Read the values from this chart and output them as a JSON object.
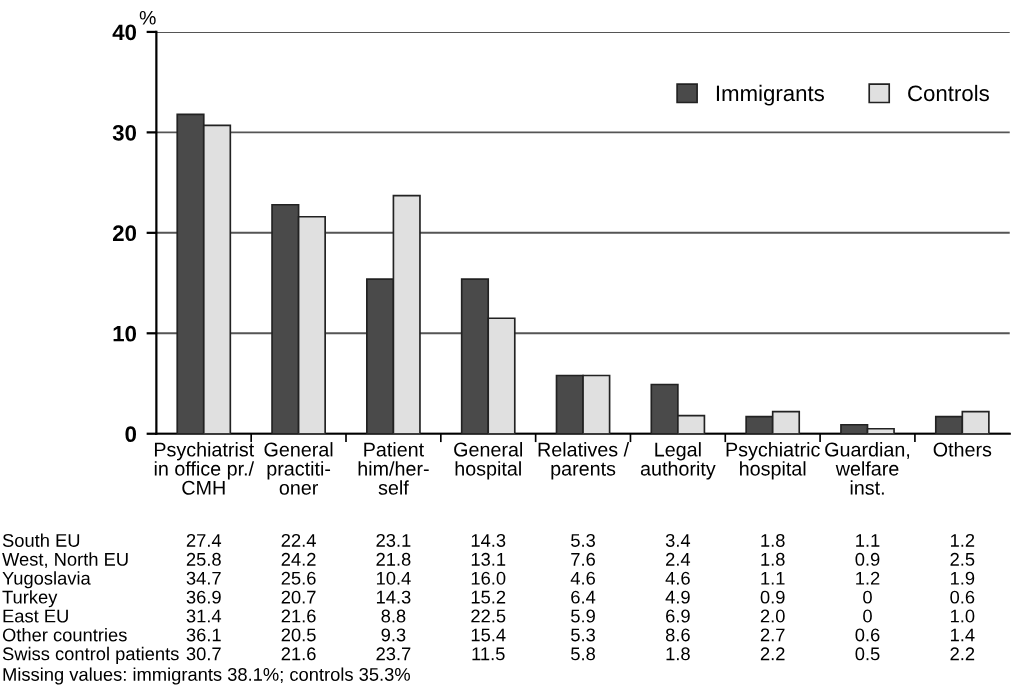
{
  "chart_data": {
    "type": "bar",
    "ylabel": "%",
    "categories": [
      "Psychiatrist\nin office pr./\nCMH",
      "General\npractiti-\noner",
      "Patient\nhim/her-\nself",
      "General\nhospital",
      "Relatives /\nparents",
      "Legal\nauthority",
      "Psychiatric\nhospital",
      "Guardian,\nwelfare\ninst.",
      "Others"
    ],
    "series": [
      {
        "name": "Immigrants",
        "color": "#4a4a4a",
        "values": [
          31.8,
          22.8,
          15.4,
          15.4,
          5.8,
          4.9,
          1.7,
          0.9,
          1.7
        ]
      },
      {
        "name": "Controls",
        "color": "#e0e0e0",
        "values": [
          30.7,
          21.6,
          23.7,
          11.5,
          5.8,
          1.8,
          2.2,
          0.5,
          2.2
        ]
      }
    ],
    "ylim": [
      0,
      40
    ],
    "yticks": [
      0,
      10,
      20,
      30,
      40
    ],
    "grid": "y",
    "legend": "top right",
    "annotations": [
      "South EU",
      "27.4",
      "22.4",
      "23.1",
      "14.3",
      "5.3",
      "3.4",
      "1.8",
      "1.1",
      "1.2",
      "West, North EU",
      "25.8",
      "24.2",
      "21.8",
      "13.1",
      "7.6",
      "2.4",
      "1.8",
      "0.9",
      "2.5",
      "Yugoslavia",
      "34.7",
      "25.6",
      "10.4",
      "16.0",
      "4.6",
      "4.6",
      "1.1",
      "1.2",
      "1.9",
      "Turkey",
      "36.9",
      "20.7",
      "14.3",
      "15.2",
      "6.4",
      "4.9",
      "0.9",
      "0",
      "0.6",
      "East EU",
      "31.4",
      "21.6",
      "8.8",
      "22.5",
      "5.9",
      "6.9",
      "2.0",
      "0",
      "1.0",
      "Other countries",
      "36.1",
      "20.5",
      "9.3",
      "15.4",
      "5.3",
      "8.6",
      "2.7",
      "0.6",
      "1.4",
      "Swiss control patients",
      "30.7",
      "21.6",
      "23.7",
      "11.5",
      "5.8",
      "1.8",
      "2.2",
      "0.5",
      "2.2",
      "Missing values: immigrants 38.1%; controls 35.3%"
    ]
  }
}
